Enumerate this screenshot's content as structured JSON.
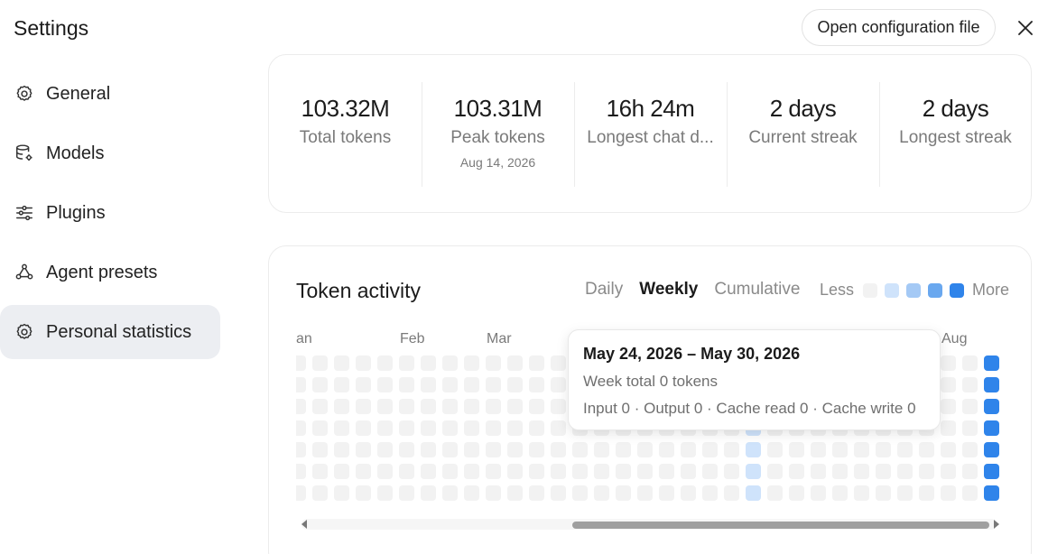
{
  "header": {
    "title": "Settings",
    "open_config_label": "Open configuration file",
    "close_icon": "close-icon"
  },
  "sidebar": {
    "items": [
      {
        "label": "General",
        "icon": "gear-icon",
        "active": false
      },
      {
        "label": "Models",
        "icon": "database-gear-icon",
        "active": false
      },
      {
        "label": "Plugins",
        "icon": "sliders-icon",
        "active": false
      },
      {
        "label": "Agent presets",
        "icon": "agent-nodes-icon",
        "active": false
      },
      {
        "label": "Personal statistics",
        "icon": "gear-icon",
        "active": true
      }
    ]
  },
  "stats": [
    {
      "value": "103.32M",
      "label": "Total tokens",
      "sub": ""
    },
    {
      "value": "103.31M",
      "label": "Peak tokens",
      "sub": "Aug 14, 2026"
    },
    {
      "value": "16h 24m",
      "label": "Longest chat d...",
      "sub": ""
    },
    {
      "value": "2 days",
      "label": "Current streak",
      "sub": ""
    },
    {
      "value": "2 days",
      "label": "Longest streak",
      "sub": ""
    }
  ],
  "activity": {
    "title": "Token activity",
    "tabs": [
      {
        "label": "Daily",
        "active": false
      },
      {
        "label": "Weekly",
        "active": true
      },
      {
        "label": "Cumulative",
        "active": false
      }
    ],
    "legend": {
      "less": "Less",
      "more": "More",
      "colors": [
        "#f2f2f2",
        "#cfe3fb",
        "#a4c9f5",
        "#6aa8ef",
        "#2f84ea"
      ]
    },
    "months": [
      "an",
      "Feb",
      "Mar",
      "Aug"
    ],
    "grid": {
      "weeks": 33,
      "days": 7,
      "highlight_week_index": 21,
      "highlight_color": "#cfe3fb",
      "last_week_color": "#2f84ea",
      "empty_color": "#f2f2f2"
    },
    "scroll": {
      "position": 1.0
    }
  },
  "tooltip": {
    "title": "May 24, 2026 – May 30, 2026",
    "week_total": "Week total 0 tokens",
    "breakdown": "Input 0 · Output 0 · Cache read 0 · Cache write 0"
  }
}
